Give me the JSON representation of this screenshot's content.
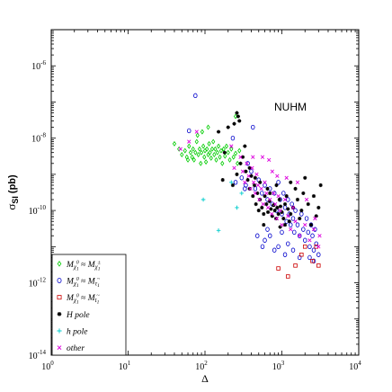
{
  "chart_data": {
    "type": "scatter",
    "title": "",
    "xlabel": "Δ",
    "ylabel_main": "σ",
    "ylabel_sub": "SI",
    "ylabel_unit": "(pb)",
    "xscale": "log",
    "yscale": "log",
    "xlim": [
      1,
      10000
    ],
    "ylim": [
      1e-14,
      1e-05
    ],
    "x_ticks": [
      {
        "value": 1,
        "base": "10",
        "exp": "0"
      },
      {
        "value": 10,
        "base": "10",
        "exp": "1"
      },
      {
        "value": 100,
        "base": "10",
        "exp": "2"
      },
      {
        "value": 1000,
        "base": "10",
        "exp": "3"
      },
      {
        "value": 10000,
        "base": "10",
        "exp": "4"
      }
    ],
    "y_ticks": [
      {
        "value": 1e-14,
        "base": "10",
        "exp": "-14"
      },
      {
        "value": 1e-12,
        "base": "10",
        "exp": "-12"
      },
      {
        "value": 1e-10,
        "base": "10",
        "exp": "-10"
      },
      {
        "value": 1e-08,
        "base": "10",
        "exp": "-8"
      },
      {
        "value": 1e-06,
        "base": "10",
        "exp": "-6"
      }
    ],
    "annotation": "NUHM",
    "grid": false,
    "legend_position": "bottom-left",
    "series": [
      {
        "name": "M_{χ1^0} ≈ M_{χ1^±}",
        "legend": {
          "main": "M",
          "sub1": "χ",
          "sub1b": "1",
          "sup1": "0",
          "rel": " ≈ ",
          "main2": "M",
          "sub2": "χ",
          "sub2b": "1",
          "sup2": "±"
        },
        "color": "#00cc00",
        "marker": "diamond",
        "points": [
          [
            40,
            7e-09
          ],
          [
            46,
            5e-09
          ],
          [
            50,
            3.5e-09
          ],
          [
            55,
            4.5e-09
          ],
          [
            58,
            3e-09
          ],
          [
            62,
            6e-09
          ],
          [
            65,
            4e-09
          ],
          [
            68,
            3e-09
          ],
          [
            70,
            5e-09
          ],
          [
            72,
            2.5e-09
          ],
          [
            75,
            4e-09
          ],
          [
            78,
            8e-09
          ],
          [
            80,
            1.2e-08
          ],
          [
            82,
            3.5e-09
          ],
          [
            85,
            5e-09
          ],
          [
            88,
            2e-09
          ],
          [
            90,
            4e-09
          ],
          [
            92,
            1.5e-08
          ],
          [
            95,
            6e-09
          ],
          [
            98,
            3e-09
          ],
          [
            100,
            4.5e-09
          ],
          [
            103,
            2.2e-09
          ],
          [
            106,
            5e-09
          ],
          [
            110,
            3.5e-09
          ],
          [
            113,
            7e-09
          ],
          [
            116,
            4e-09
          ],
          [
            120,
            2.8e-09
          ],
          [
            124,
            5e-09
          ],
          [
            128,
            8e-09
          ],
          [
            132,
            3.5e-09
          ],
          [
            136,
            5e-09
          ],
          [
            140,
            2.5e-09
          ],
          [
            145,
            4e-09
          ],
          [
            150,
            6e-09
          ],
          [
            156,
            3e-09
          ],
          [
            162,
            4.5e-09
          ],
          [
            168,
            2e-09
          ],
          [
            175,
            5e-09
          ],
          [
            182,
            3.2e-09
          ],
          [
            190,
            6e-09
          ],
          [
            200,
            4e-09
          ],
          [
            210,
            2.5e-09
          ],
          [
            220,
            5e-09
          ],
          [
            235,
            3e-09
          ],
          [
            250,
            3.8e-09
          ],
          [
            265,
            2e-09
          ],
          [
            280,
            4.5e-09
          ],
          [
            250,
            4e-08
          ],
          [
            110,
            2e-08
          ],
          [
            60,
            2.5e-09
          ]
        ]
      },
      {
        "name": "M_{χ1^0} ≈ M_{τ~1}",
        "legend": {
          "main": "M",
          "sub1": "χ",
          "sub1b": "1",
          "sup1": "0",
          "rel": " ≈ ",
          "main2": "M",
          "sub2": "τ",
          "sub2b": "1",
          "sup2": "~"
        },
        "color": "#0000cc",
        "marker": "circle",
        "points": [
          [
            75,
            1.5e-07
          ],
          [
            62,
            1.6e-08
          ],
          [
            360,
            2e-09
          ],
          [
            230,
            1e-08
          ],
          [
            420,
            2e-08
          ],
          [
            300,
            8e-10
          ],
          [
            340,
            5e-10
          ],
          [
            400,
            1.2e-09
          ],
          [
            450,
            4e-10
          ],
          [
            500,
            7e-10
          ],
          [
            550,
            3e-10
          ],
          [
            600,
            5e-10
          ],
          [
            650,
            2e-10
          ],
          [
            700,
            4e-10
          ],
          [
            750,
            1.5e-10
          ],
          [
            800,
            3e-10
          ],
          [
            850,
            1e-10
          ],
          [
            900,
            6e-10
          ],
          [
            950,
            2e-10
          ],
          [
            1000,
            8e-11
          ],
          [
            1050,
            3e-10
          ],
          [
            1100,
            1.2e-10
          ],
          [
            1150,
            5e-11
          ],
          [
            1200,
            2e-10
          ],
          [
            1250,
            8e-11
          ],
          [
            1300,
            4e-11
          ],
          [
            1350,
            1.5e-10
          ],
          [
            1400,
            6e-11
          ],
          [
            1450,
            2.5e-11
          ],
          [
            1500,
            1e-10
          ],
          [
            1600,
            4e-11
          ],
          [
            1700,
            2e-11
          ],
          [
            1800,
            8e-11
          ],
          [
            1900,
            3e-11
          ],
          [
            2000,
            1.5e-11
          ],
          [
            2100,
            6e-11
          ],
          [
            2200,
            2.5e-11
          ],
          [
            2300,
            1e-11
          ],
          [
            2400,
            4e-11
          ],
          [
            2500,
            2e-11
          ],
          [
            2600,
            8e-12
          ],
          [
            2700,
            3e-11
          ],
          [
            2800,
            1.2e-11
          ],
          [
            600,
            1.5e-11
          ],
          [
            700,
            2e-11
          ],
          [
            800,
            8e-12
          ],
          [
            900,
            1e-11
          ],
          [
            1000,
            2.5e-11
          ],
          [
            1200,
            1.2e-11
          ],
          [
            480,
            2e-11
          ],
          [
            560,
            1e-11
          ],
          [
            650,
            3e-11
          ],
          [
            1100,
            6e-12
          ],
          [
            1400,
            8e-12
          ],
          [
            1700,
            5e-12
          ],
          [
            2300,
            5e-12
          ],
          [
            2600,
            4e-12
          ],
          [
            3000,
            6e-12
          ],
          [
            330,
            4e-10
          ],
          [
            250,
            6e-10
          ]
        ]
      },
      {
        "name": "M_{χ1^0} ≈ M_{t~1}",
        "legend": {
          "main": "M",
          "sub1": "χ",
          "sub1b": "1",
          "sup1": "0",
          "rel": " ≈ ",
          "main2": "M",
          "sub2": "t",
          "sub2b": "1",
          "sup2": "~"
        },
        "color": "#cc0000",
        "marker": "square",
        "points": [
          [
            900,
            2.5e-12
          ],
          [
            1200,
            1.5e-12
          ],
          [
            1500,
            3e-12
          ],
          [
            2000,
            1e-11
          ],
          [
            2500,
            4e-12
          ],
          [
            3000,
            3e-12
          ],
          [
            1800,
            6e-12
          ],
          [
            2800,
            1e-11
          ]
        ]
      },
      {
        "name": "H pole",
        "legend": {
          "main": "H pole"
        },
        "color": "#000000",
        "marker": "star",
        "points": [
          [
            260,
            5e-08
          ],
          [
            270,
            4e-08
          ],
          [
            240,
            2.5e-08
          ],
          [
            280,
            3e-08
          ],
          [
            150,
            1.5e-08
          ],
          [
            200,
            2e-08
          ],
          [
            330,
            6e-09
          ],
          [
            180,
            4e-09
          ],
          [
            170,
            7e-10
          ],
          [
            230,
            5e-10
          ],
          [
            260,
            1e-09
          ],
          [
            290,
            2e-09
          ],
          [
            310,
            3e-09
          ],
          [
            340,
            1.2e-09
          ],
          [
            360,
            7e-10
          ],
          [
            380,
            4e-10
          ],
          [
            400,
            9e-10
          ],
          [
            420,
            2.5e-10
          ],
          [
            440,
            5e-10
          ],
          [
            460,
            1.5e-10
          ],
          [
            480,
            3e-10
          ],
          [
            500,
            1e-10
          ],
          [
            520,
            2e-10
          ],
          [
            550,
            1.2e-10
          ],
          [
            580,
            8e-11
          ],
          [
            600,
            2.5e-10
          ],
          [
            630,
            1.5e-10
          ],
          [
            660,
            9e-11
          ],
          [
            690,
            1.8e-10
          ],
          [
            720,
            1.1e-10
          ],
          [
            750,
            7e-11
          ],
          [
            780,
            1.4e-10
          ],
          [
            810,
            1e-10
          ],
          [
            840,
            6e-11
          ],
          [
            870,
            1.2e-10
          ],
          [
            900,
            8e-11
          ],
          [
            930,
            2e-10
          ],
          [
            960,
            1.3e-10
          ],
          [
            1000,
            9e-11
          ],
          [
            1050,
            6e-11
          ],
          [
            1100,
            1.5e-10
          ],
          [
            1150,
            2.5e-10
          ],
          [
            1200,
            1.1e-10
          ],
          [
            1250,
            5e-11
          ],
          [
            1300,
            8e-11
          ],
          [
            1400,
            1.2e-10
          ],
          [
            1500,
            4e-10
          ],
          [
            1600,
            2e-10
          ],
          [
            1700,
            6e-11
          ],
          [
            1800,
            1e-10
          ],
          [
            1900,
            3e-10
          ],
          [
            2000,
            8e-10
          ],
          [
            2200,
            1.5e-10
          ],
          [
            2400,
            4e-11
          ],
          [
            2600,
            2.5e-10
          ],
          [
            2800,
            7e-11
          ],
          [
            3000,
            1.2e-10
          ],
          [
            3200,
            5e-10
          ],
          [
            700,
            3e-10
          ],
          [
            520,
            6e-10
          ],
          [
            450,
            8e-10
          ],
          [
            380,
            1.5e-09
          ],
          [
            650,
            4e-10
          ],
          [
            850,
            5e-10
          ],
          [
            1300,
            6e-10
          ],
          [
            580,
            4e-11
          ],
          [
            950,
            3.5e-11
          ],
          [
            1100,
            4e-11
          ]
        ]
      },
      {
        "name": "h pole",
        "legend": {
          "main": "h pole"
        },
        "color": "#00cccc",
        "marker": "plus",
        "points": [
          [
            95,
            2e-10
          ],
          [
            150,
            2.8e-11
          ],
          [
            220,
            6e-10
          ],
          [
            300,
            3e-10
          ],
          [
            260,
            1.2e-10
          ]
        ]
      },
      {
        "name": "other",
        "legend": {
          "main": "other"
        },
        "color": "#dd00dd",
        "marker": "x",
        "points": [
          [
            62,
            8e-09
          ],
          [
            78,
            1.5e-08
          ],
          [
            48,
            5e-09
          ],
          [
            220,
            6e-09
          ],
          [
            240,
            1.5e-09
          ],
          [
            290,
            3e-09
          ],
          [
            310,
            1.2e-09
          ],
          [
            330,
            6e-10
          ],
          [
            350,
            2e-09
          ],
          [
            370,
            9e-10
          ],
          [
            390,
            4e-10
          ],
          [
            410,
            1.5e-09
          ],
          [
            430,
            6e-10
          ],
          [
            450,
            3e-10
          ],
          [
            470,
            1e-09
          ],
          [
            490,
            5e-10
          ],
          [
            510,
            2e-10
          ],
          [
            540,
            4e-10
          ],
          [
            570,
            1.5e-10
          ],
          [
            600,
            6e-10
          ],
          [
            630,
            3e-10
          ],
          [
            660,
            1.2e-10
          ],
          [
            700,
            2e-10
          ],
          [
            740,
            8e-11
          ],
          [
            780,
            3e-10
          ],
          [
            820,
            1.5e-10
          ],
          [
            860,
            6e-11
          ],
          [
            900,
            2.5e-10
          ],
          [
            950,
            1e-10
          ],
          [
            1000,
            4e-11
          ],
          [
            1100,
            2e-10
          ],
          [
            1200,
            7e-11
          ],
          [
            1300,
            3e-11
          ],
          [
            1400,
            1.2e-10
          ],
          [
            1500,
            5e-11
          ],
          [
            1700,
            2e-11
          ],
          [
            2000,
            4e-11
          ],
          [
            2300,
            1.5e-11
          ],
          [
            2600,
            3e-11
          ],
          [
            3000,
            1e-11
          ],
          [
            750,
            1.2e-09
          ],
          [
            680,
            2.5e-09
          ],
          [
            560,
            3e-09
          ],
          [
            1150,
            8e-10
          ],
          [
            1600,
            6e-10
          ],
          [
            2100,
            2e-10
          ],
          [
            2700,
            6e-11
          ],
          [
            3100,
            2e-11
          ],
          [
            420,
            3e-09
          ],
          [
            870,
            9e-10
          ]
        ]
      }
    ]
  }
}
